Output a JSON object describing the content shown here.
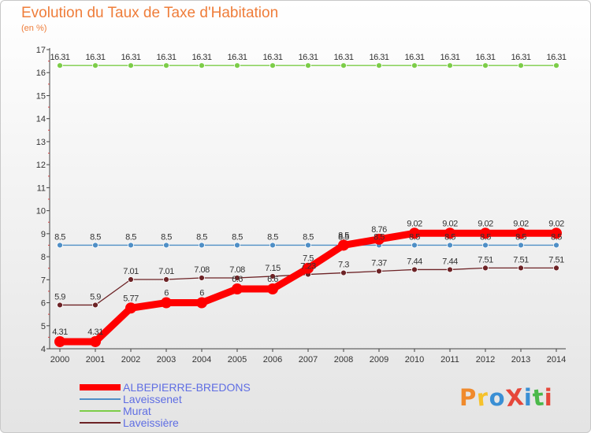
{
  "chart_data": {
    "type": "line",
    "title": "Evolution du Taux de Taxe d'Habitation",
    "subtitle": "(en %)",
    "xlabel": "",
    "ylabel": "",
    "ylim": [
      4,
      17
    ],
    "yticks": [
      "4",
      "5",
      "6",
      "7",
      "8",
      "9",
      "10",
      "11",
      "12",
      "13",
      "14",
      "15",
      "16",
      "17"
    ],
    "x": [
      "2000",
      "2001",
      "2002",
      "2003",
      "2004",
      "2005",
      "2006",
      "2007",
      "2008",
      "2009",
      "2010",
      "2011",
      "2012",
      "2013",
      "2014"
    ],
    "grid": false,
    "series": [
      {
        "name": "ALBEPIERRE-BREDONS",
        "color": "#ff0000",
        "values": [
          4.31,
          4.31,
          5.77,
          6,
          6,
          6.6,
          6.6,
          7.5,
          8.5,
          8.76,
          9.02,
          9.02,
          9.02,
          9.02,
          9.02
        ],
        "labels": [
          "4.31",
          "4.31",
          "5.77",
          "6",
          "6",
          "6.6",
          "6.6",
          "7.5",
          "8.5",
          "8.76",
          "9.02",
          "9.02",
          "9.02",
          "9.02",
          "9.02"
        ]
      },
      {
        "name": "Laveissenet",
        "color": "#4f8fc6",
        "values": [
          8.5,
          8.5,
          8.5,
          8.5,
          8.5,
          8.5,
          8.5,
          8.5,
          8.5,
          8.5,
          8.5,
          8.5,
          8.5,
          8.5,
          8.5
        ],
        "labels": [
          "8.5",
          "8.5",
          "8.5",
          "8.5",
          "8.5",
          "8.5",
          "8.5",
          "8.5",
          "8.5",
          "8.5",
          "8.5",
          "8.5",
          "8.5",
          "8.5",
          "8.5"
        ]
      },
      {
        "name": "Murat",
        "color": "#7ccd48",
        "values": [
          16.31,
          16.31,
          16.31,
          16.31,
          16.31,
          16.31,
          16.31,
          16.31,
          16.31,
          16.31,
          16.31,
          16.31,
          16.31,
          16.31,
          16.31
        ],
        "labels": [
          "16.31",
          "16.31",
          "16.31",
          "16.31",
          "16.31",
          "16.31",
          "16.31",
          "16.31",
          "16.31",
          "16.31",
          "16.31",
          "16.31",
          "16.31",
          "16.31",
          "16.31"
        ]
      },
      {
        "name": "Laveissière",
        "color": "#6d2326",
        "values": [
          5.9,
          5.9,
          7.01,
          7.01,
          7.08,
          7.08,
          7.15,
          7.23,
          7.3,
          7.37,
          7.44,
          7.44,
          7.51,
          7.51,
          7.51
        ],
        "labels": [
          "5.9",
          "5.9",
          "7.01",
          "7.01",
          "7.08",
          "7.08",
          "7.15",
          "7.23",
          "7.3",
          "7.37",
          "7.44",
          "7.44",
          "7.51",
          "7.51",
          "7.51"
        ]
      }
    ]
  },
  "logo": {
    "text": "ProXiti",
    "colors": [
      "#f08a2c",
      "#f6c22b",
      "#3a8fd4",
      "#e6473a",
      "#3a8fd4",
      "#4bb94a",
      "#e6473a"
    ]
  }
}
